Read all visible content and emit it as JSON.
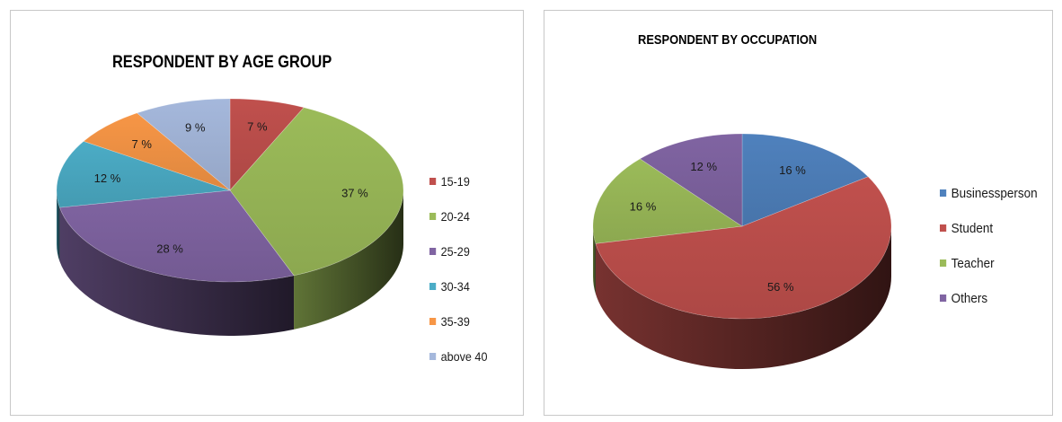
{
  "chart_data": [
    {
      "type": "pie",
      "title": "RESPONDENT BY AGE GROUP",
      "categories": [
        "15-19",
        "20-24",
        "25-29",
        "30-34",
        "35-39",
        "above 40"
      ],
      "values": [
        7,
        37,
        28,
        12,
        7,
        9
      ],
      "data_labels": [
        "7 %",
        "37 %",
        "28 %",
        "12 %",
        "7 %",
        "9 %"
      ],
      "colors": [
        "#c0504d",
        "#9bbb59",
        "#8064a2",
        "#4bacc6",
        "#f79646",
        "#a5b8dc"
      ],
      "legend_position": "right"
    },
    {
      "type": "pie",
      "title": "RESPONDENT BY OCCUPATION",
      "categories": [
        "Businessperson",
        "Student",
        "Teacher",
        "Others"
      ],
      "values": [
        16,
        56,
        16,
        12
      ],
      "data_labels": [
        "16 %",
        "56 %",
        "16 %",
        "12 %"
      ],
      "colors": [
        "#4f81bd",
        "#c0504d",
        "#9bbb59",
        "#8064a2"
      ],
      "legend_position": "right"
    }
  ]
}
